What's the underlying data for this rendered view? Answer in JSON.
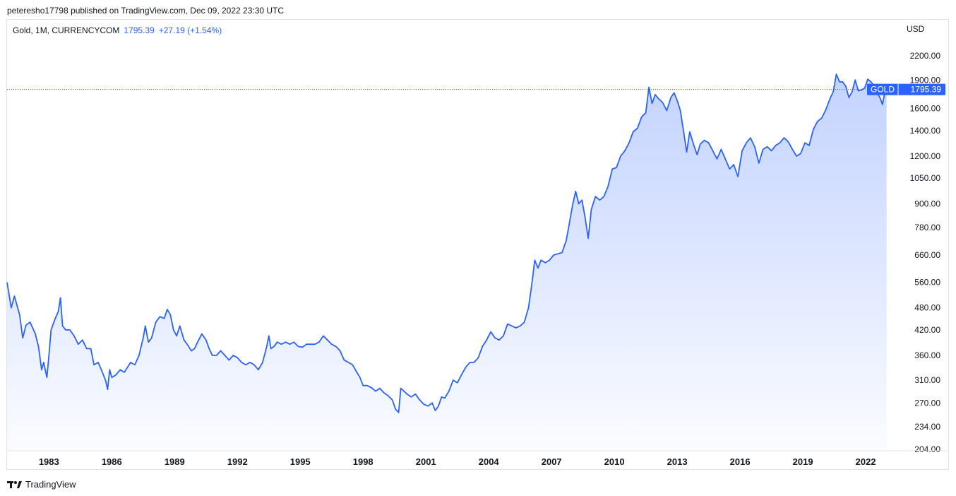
{
  "header": {
    "published_text": "peteresho17798 published on TradingView.com, Dec 09, 2022 23:30 UTC"
  },
  "legend": {
    "symbol_text": "Gold, 1M, CURRENCYCOM",
    "last_value": "1795.39",
    "change": "+27.19 (+1.54%)"
  },
  "currency": "USD",
  "price_tag": {
    "label": "GOLD",
    "value": "1795.39"
  },
  "footer": {
    "brand": "TradingView"
  },
  "colors": {
    "line": "#2962ff",
    "accent": "#2962ff",
    "text": "#131722"
  },
  "chart_data": {
    "type": "area",
    "y_scale": "log",
    "ylim": [
      204,
      2400
    ],
    "xlim": [
      1981,
      2023.65
    ],
    "y_ticks": [
      "2200.00",
      "1900.00",
      "1600.00",
      "1400.00",
      "1200.00",
      "1050.00",
      "900.00",
      "780.00",
      "660.00",
      "560.00",
      "480.00",
      "420.00",
      "360.00",
      "310.00",
      "270.00",
      "234.00",
      "204.00"
    ],
    "x_ticks": [
      "1983",
      "1986",
      "1989",
      "1992",
      "1995",
      "1998",
      "2001",
      "2004",
      "2007",
      "2010",
      "2013",
      "2016",
      "2019",
      "2022"
    ],
    "last_value": 1795.39,
    "series": [
      {
        "points": [
          [
            1981.0,
            560
          ],
          [
            1981.2,
            480
          ],
          [
            1981.35,
            515
          ],
          [
            1981.6,
            460
          ],
          [
            1981.75,
            400
          ],
          [
            1981.9,
            432
          ],
          [
            1982.1,
            440
          ],
          [
            1982.35,
            410
          ],
          [
            1982.5,
            380
          ],
          [
            1982.65,
            330
          ],
          [
            1982.75,
            345
          ],
          [
            1982.9,
            315
          ],
          [
            1983.0,
            360
          ],
          [
            1983.1,
            420
          ],
          [
            1983.3,
            450
          ],
          [
            1983.45,
            470
          ],
          [
            1983.55,
            510
          ],
          [
            1983.65,
            430
          ],
          [
            1983.8,
            420
          ],
          [
            1984.0,
            420
          ],
          [
            1984.2,
            405
          ],
          [
            1984.4,
            385
          ],
          [
            1984.6,
            395
          ],
          [
            1984.8,
            375
          ],
          [
            1985.0,
            375
          ],
          [
            1985.15,
            340
          ],
          [
            1985.35,
            345
          ],
          [
            1985.5,
            330
          ],
          [
            1985.7,
            310
          ],
          [
            1985.8,
            293
          ],
          [
            1985.9,
            330
          ],
          [
            1986.0,
            315
          ],
          [
            1986.2,
            320
          ],
          [
            1986.4,
            330
          ],
          [
            1986.6,
            325
          ],
          [
            1986.9,
            345
          ],
          [
            1987.1,
            340
          ],
          [
            1987.3,
            360
          ],
          [
            1987.5,
            400
          ],
          [
            1987.6,
            430
          ],
          [
            1987.75,
            390
          ],
          [
            1987.9,
            400
          ],
          [
            1988.1,
            440
          ],
          [
            1988.3,
            455
          ],
          [
            1988.5,
            450
          ],
          [
            1988.65,
            475
          ],
          [
            1988.8,
            460
          ],
          [
            1988.95,
            420
          ],
          [
            1989.1,
            405
          ],
          [
            1989.25,
            430
          ],
          [
            1989.45,
            395
          ],
          [
            1989.6,
            385
          ],
          [
            1989.8,
            370
          ],
          [
            1989.95,
            375
          ],
          [
            1990.1,
            390
          ],
          [
            1990.3,
            410
          ],
          [
            1990.5,
            395
          ],
          [
            1990.65,
            375
          ],
          [
            1990.8,
            360
          ],
          [
            1991.0,
            360
          ],
          [
            1991.2,
            370
          ],
          [
            1991.4,
            360
          ],
          [
            1991.6,
            350
          ],
          [
            1991.8,
            360
          ],
          [
            1992.0,
            355
          ],
          [
            1992.2,
            345
          ],
          [
            1992.4,
            340
          ],
          [
            1992.6,
            345
          ],
          [
            1992.8,
            340
          ],
          [
            1993.0,
            330
          ],
          [
            1993.2,
            345
          ],
          [
            1993.4,
            380
          ],
          [
            1993.5,
            405
          ],
          [
            1993.6,
            375
          ],
          [
            1993.75,
            380
          ],
          [
            1993.9,
            390
          ],
          [
            1994.1,
            385
          ],
          [
            1994.3,
            390
          ],
          [
            1994.5,
            385
          ],
          [
            1994.7,
            390
          ],
          [
            1994.9,
            380
          ],
          [
            1995.1,
            378
          ],
          [
            1995.3,
            385
          ],
          [
            1995.5,
            385
          ],
          [
            1995.7,
            385
          ],
          [
            1995.9,
            390
          ],
          [
            1996.1,
            405
          ],
          [
            1996.3,
            395
          ],
          [
            1996.5,
            385
          ],
          [
            1996.7,
            380
          ],
          [
            1996.9,
            370
          ],
          [
            1997.1,
            350
          ],
          [
            1997.3,
            345
          ],
          [
            1997.5,
            340
          ],
          [
            1997.7,
            325
          ],
          [
            1997.85,
            315
          ],
          [
            1998.0,
            300
          ],
          [
            1998.2,
            300
          ],
          [
            1998.4,
            296
          ],
          [
            1998.6,
            290
          ],
          [
            1998.8,
            295
          ],
          [
            1999.0,
            287
          ],
          [
            1999.2,
            282
          ],
          [
            1999.4,
            275
          ],
          [
            1999.55,
            260
          ],
          [
            1999.7,
            255
          ],
          [
            1999.8,
            295
          ],
          [
            1999.95,
            290
          ],
          [
            2000.1,
            285
          ],
          [
            2000.3,
            280
          ],
          [
            2000.5,
            285
          ],
          [
            2000.7,
            275
          ],
          [
            2000.9,
            268
          ],
          [
            2001.1,
            265
          ],
          [
            2001.3,
            270
          ],
          [
            2001.45,
            258
          ],
          [
            2001.6,
            265
          ],
          [
            2001.75,
            280
          ],
          [
            2001.9,
            278
          ],
          [
            2002.1,
            290
          ],
          [
            2002.3,
            310
          ],
          [
            2002.5,
            305
          ],
          [
            2002.7,
            320
          ],
          [
            2002.9,
            335
          ],
          [
            2003.1,
            345
          ],
          [
            2003.3,
            345
          ],
          [
            2003.5,
            355
          ],
          [
            2003.7,
            380
          ],
          [
            2003.9,
            395
          ],
          [
            2004.1,
            415
          ],
          [
            2004.3,
            400
          ],
          [
            2004.5,
            395
          ],
          [
            2004.7,
            405
          ],
          [
            2004.9,
            435
          ],
          [
            2005.1,
            430
          ],
          [
            2005.3,
            425
          ],
          [
            2005.5,
            430
          ],
          [
            2005.7,
            440
          ],
          [
            2005.9,
            480
          ],
          [
            2006.05,
            550
          ],
          [
            2006.2,
            640
          ],
          [
            2006.35,
            610
          ],
          [
            2006.5,
            640
          ],
          [
            2006.7,
            630
          ],
          [
            2006.9,
            640
          ],
          [
            2007.1,
            660
          ],
          [
            2007.3,
            665
          ],
          [
            2007.5,
            670
          ],
          [
            2007.7,
            720
          ],
          [
            2007.85,
            800
          ],
          [
            2008.0,
            890
          ],
          [
            2008.15,
            970
          ],
          [
            2008.3,
            900
          ],
          [
            2008.45,
            920
          ],
          [
            2008.6,
            830
          ],
          [
            2008.75,
            730
          ],
          [
            2008.9,
            870
          ],
          [
            2009.1,
            940
          ],
          [
            2009.3,
            920
          ],
          [
            2009.5,
            940
          ],
          [
            2009.7,
            1000
          ],
          [
            2009.9,
            1110
          ],
          [
            2010.1,
            1120
          ],
          [
            2010.3,
            1200
          ],
          [
            2010.5,
            1240
          ],
          [
            2010.7,
            1300
          ],
          [
            2010.9,
            1390
          ],
          [
            2011.1,
            1420
          ],
          [
            2011.3,
            1520
          ],
          [
            2011.5,
            1560
          ],
          [
            2011.65,
            1820
          ],
          [
            2011.8,
            1650
          ],
          [
            2011.95,
            1740
          ],
          [
            2012.1,
            1700
          ],
          [
            2012.3,
            1660
          ],
          [
            2012.5,
            1580
          ],
          [
            2012.7,
            1710
          ],
          [
            2012.85,
            1760
          ],
          [
            2013.0,
            1680
          ],
          [
            2013.15,
            1580
          ],
          [
            2013.3,
            1400
          ],
          [
            2013.45,
            1230
          ],
          [
            2013.6,
            1390
          ],
          [
            2013.8,
            1280
          ],
          [
            2013.95,
            1210
          ],
          [
            2014.1,
            1290
          ],
          [
            2014.3,
            1320
          ],
          [
            2014.5,
            1300
          ],
          [
            2014.7,
            1240
          ],
          [
            2014.9,
            1180
          ],
          [
            2015.1,
            1250
          ],
          [
            2015.3,
            1180
          ],
          [
            2015.5,
            1110
          ],
          [
            2015.7,
            1140
          ],
          [
            2015.9,
            1060
          ],
          [
            2016.1,
            1240
          ],
          [
            2016.3,
            1300
          ],
          [
            2016.5,
            1340
          ],
          [
            2016.7,
            1270
          ],
          [
            2016.9,
            1150
          ],
          [
            2017.1,
            1250
          ],
          [
            2017.3,
            1270
          ],
          [
            2017.5,
            1240
          ],
          [
            2017.7,
            1280
          ],
          [
            2017.9,
            1300
          ],
          [
            2018.1,
            1340
          ],
          [
            2018.3,
            1310
          ],
          [
            2018.5,
            1250
          ],
          [
            2018.7,
            1200
          ],
          [
            2018.9,
            1220
          ],
          [
            2019.1,
            1300
          ],
          [
            2019.3,
            1280
          ],
          [
            2019.5,
            1410
          ],
          [
            2019.7,
            1480
          ],
          [
            2019.9,
            1510
          ],
          [
            2020.1,
            1590
          ],
          [
            2020.3,
            1700
          ],
          [
            2020.45,
            1770
          ],
          [
            2020.6,
            1970
          ],
          [
            2020.75,
            1880
          ],
          [
            2020.9,
            1880
          ],
          [
            2021.05,
            1830
          ],
          [
            2021.2,
            1710
          ],
          [
            2021.35,
            1770
          ],
          [
            2021.5,
            1900
          ],
          [
            2021.65,
            1780
          ],
          [
            2021.8,
            1790
          ],
          [
            2021.95,
            1810
          ],
          [
            2022.1,
            1910
          ],
          [
            2022.25,
            1880
          ],
          [
            2022.4,
            1840
          ],
          [
            2022.55,
            1760
          ],
          [
            2022.7,
            1700
          ],
          [
            2022.8,
            1640
          ],
          [
            2022.92,
            1770
          ],
          [
            2023.0,
            1795.39
          ]
        ]
      }
    ]
  }
}
